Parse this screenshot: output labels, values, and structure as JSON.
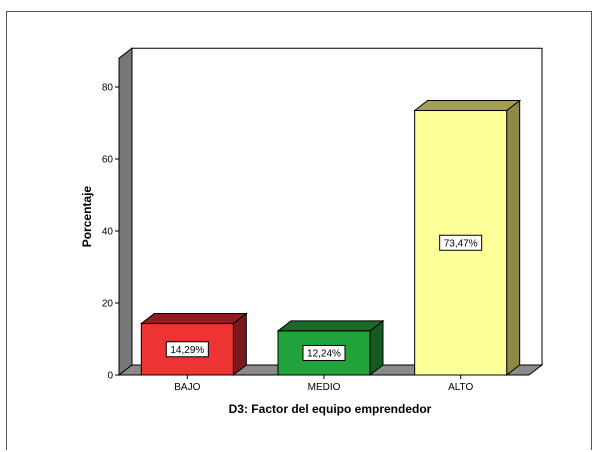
{
  "chart_data": {
    "type": "bar",
    "categories": [
      "BAJO",
      "MEDIO",
      "ALTO"
    ],
    "values": [
      14.29,
      12.24,
      73.47
    ],
    "data_labels": [
      "14,29%",
      "12,24%",
      "73,47%"
    ],
    "colors": {
      "front": [
        "#ee3333",
        "#22a33b",
        "#ffff9a"
      ],
      "top": [
        "#8e1d22",
        "#1a6a2a",
        "#a39e52"
      ],
      "side": [
        "#7a1a1e",
        "#145a22",
        "#8e8a45"
      ],
      "wall": "#ffffff",
      "floor": "#8a8a8a",
      "left_wall": "#777777"
    },
    "title": "",
    "xlabel": "D3: Factor del equipo emprendedor",
    "ylabel": "Porcentaje",
    "ylim": [
      0,
      88
    ],
    "yticks": [
      0,
      20,
      40,
      60,
      80
    ],
    "ytick_labels": [
      "0",
      "20",
      "40",
      "60",
      "80"
    ],
    "grid": false,
    "legend": "none"
  }
}
